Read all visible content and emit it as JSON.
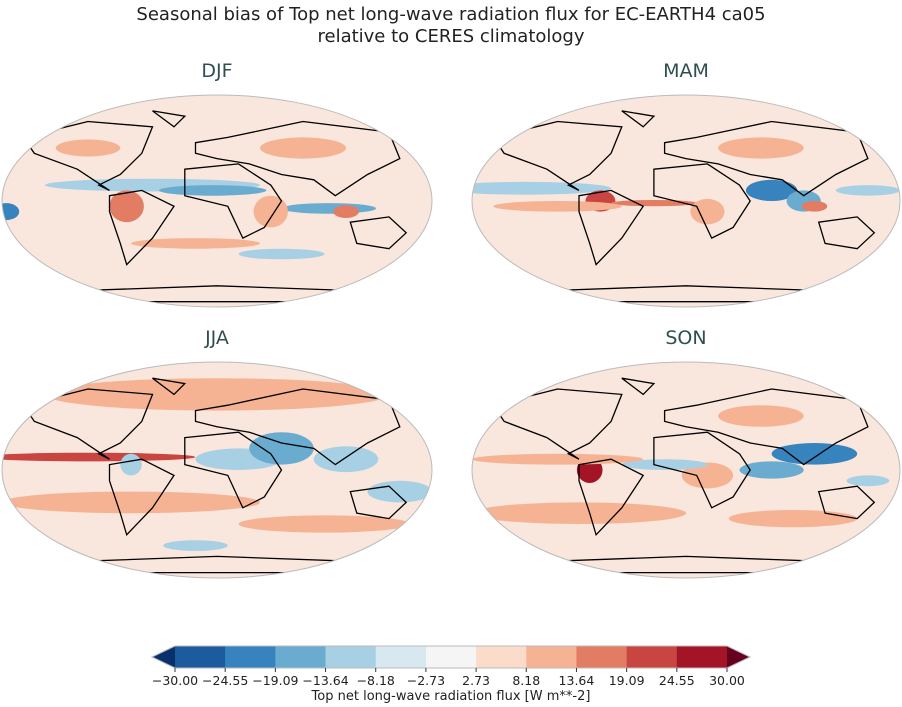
{
  "figure": {
    "title_line1": "Seasonal bias of Top net long-wave radiation flux for EC-EARTH4 ca05",
    "title_line2": "relative to CERES climatology",
    "panels": [
      {
        "title": "DJF"
      },
      {
        "title": "MAM"
      },
      {
        "title": "JJA"
      },
      {
        "title": "SON"
      }
    ]
  },
  "chart_data": {
    "type": "map",
    "projection": "Robinson",
    "colorbar": {
      "label": "Top net long-wave radiation flux [W m**-2]",
      "levels": [
        "-30.00",
        "-24.55",
        "-19.09",
        "-13.64",
        "-8.18",
        "-2.73",
        "2.73",
        "8.18",
        "13.64",
        "19.09",
        "24.55",
        "30.00"
      ],
      "colors": [
        "#1c5b9e",
        "#3783bd",
        "#6aacd0",
        "#a8d0e4",
        "#d8e8f0",
        "#f5f5f5",
        "#fbdccb",
        "#f5b394",
        "#e27d64",
        "#c84541",
        "#a31426"
      ],
      "extend_min_color": "#08306b",
      "extend_max_color": "#67001f",
      "cmap": "RdBu_r"
    }
  }
}
